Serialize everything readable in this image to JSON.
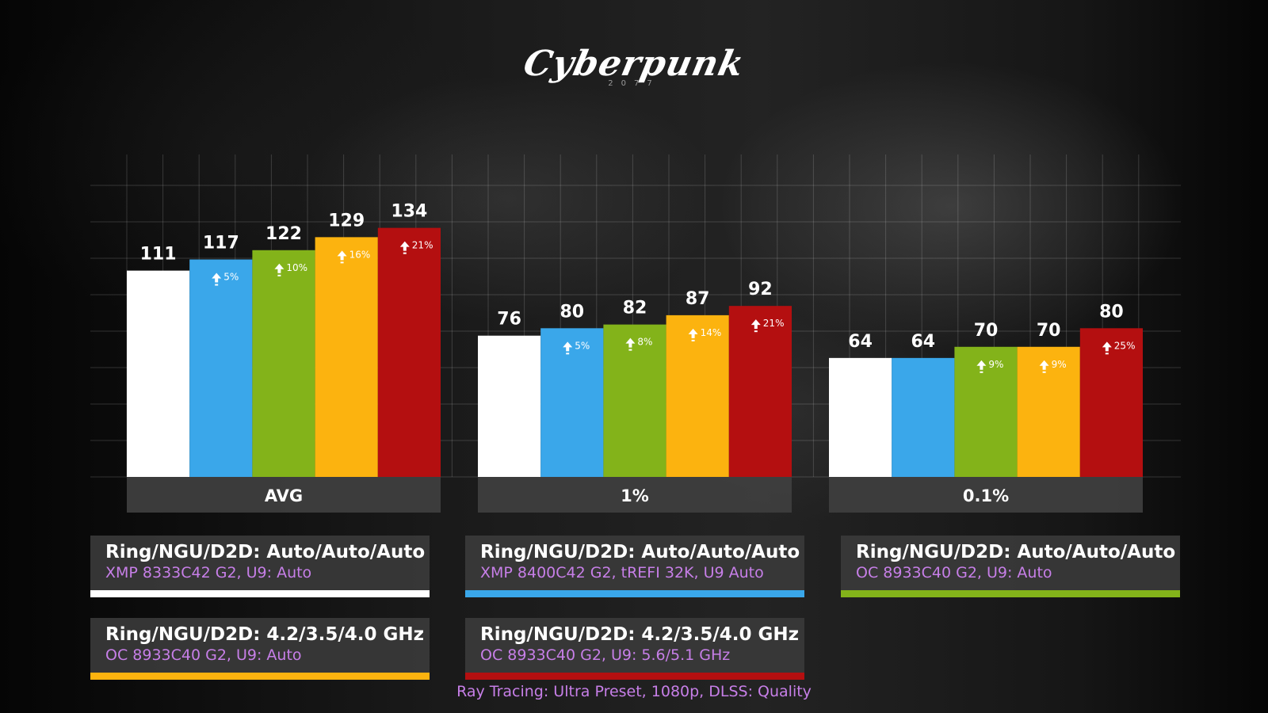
{
  "logo": {
    "text": "Cyberpunk",
    "sub": "2077"
  },
  "chart_data": {
    "type": "bar",
    "categories": [
      "AVG",
      "1%",
      "0.1%"
    ],
    "series": [
      {
        "values": [
          111,
          76,
          64
        ],
        "gains": [
          "",
          "",
          ""
        ],
        "color": "#ffffff"
      },
      {
        "values": [
          117,
          80,
          64
        ],
        "gains": [
          "5%",
          "5%",
          ""
        ],
        "color": "#3aa7ea"
      },
      {
        "values": [
          122,
          82,
          70
        ],
        "gains": [
          "10%",
          "8%",
          "9%"
        ],
        "color": "#83b31a"
      },
      {
        "values": [
          129,
          87,
          70
        ],
        "gains": [
          "16%",
          "14%",
          "9%"
        ],
        "color": "#fcb30f"
      },
      {
        "values": [
          134,
          92,
          80
        ],
        "gains": [
          "21%",
          "21%",
          "25%"
        ],
        "color": "#b40f10"
      }
    ],
    "ylim": [
      0,
      170
    ],
    "grid": true
  },
  "legend": [
    {
      "title": "Ring/NGU/D2D: Auto/Auto/Auto",
      "subtitle": "XMP 8333C42 G2, U9: Auto",
      "color": "#ffffff"
    },
    {
      "title": "Ring/NGU/D2D: Auto/Auto/Auto",
      "subtitle": "XMP 8400C42 G2, tREFI 32K, U9 Auto",
      "color": "#3aa7ea"
    },
    {
      "title": "Ring/NGU/D2D: Auto/Auto/Auto",
      "subtitle": "OC 8933C40 G2, U9: Auto",
      "color": "#83b31a"
    },
    {
      "title": "Ring/NGU/D2D: 4.2/3.5/4.0 GHz",
      "subtitle": "OC 8933C40 G2, U9: Auto",
      "color": "#fcb30f"
    },
    {
      "title": "Ring/NGU/D2D: 4.2/3.5/4.0 GHz",
      "subtitle": "OC 8933C40 G2, U9: 5.6/5.1 GHz",
      "color": "#b40f10"
    }
  ],
  "footnote": "Ray Tracing: Ultra Preset, 1080p, DLSS: Quality"
}
